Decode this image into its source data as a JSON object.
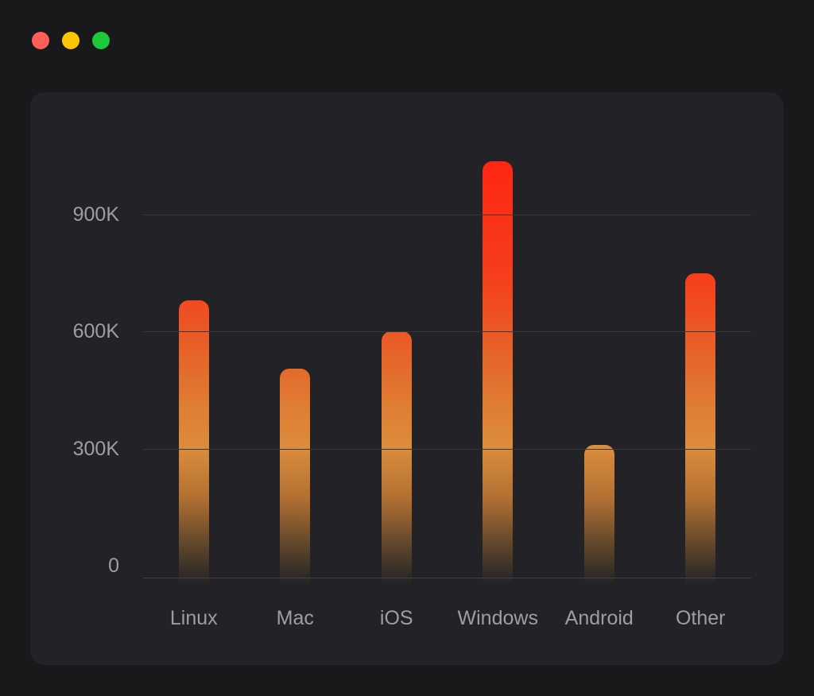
{
  "window": {
    "controls": [
      {
        "name": "close",
        "color": "#ff5f57"
      },
      {
        "name": "minimize",
        "color": "#fdc605"
      },
      {
        "name": "zoom",
        "color": "#1dc83b"
      }
    ]
  },
  "chart_data": {
    "type": "bar",
    "title": "",
    "xlabel": "",
    "ylabel": "",
    "categories": [
      "Linux",
      "Mac",
      "iOS",
      "Windows",
      "Android",
      "Other"
    ],
    "values": [
      680000,
      505000,
      600000,
      1035000,
      310000,
      750000
    ],
    "ylim": [
      0,
      1040000
    ],
    "yticks": [
      {
        "value": 0,
        "label": "0"
      },
      {
        "value": 300000,
        "label": "300K"
      },
      {
        "value": 600000,
        "label": "600K"
      },
      {
        "value": 900000,
        "label": "900K"
      }
    ],
    "grid": true,
    "legend": false,
    "style": {
      "background": "#232327",
      "page_background": "#19191b",
      "label_color": "#9b9fa4",
      "gridline_color": "#37373b",
      "gradient_stops": [
        {
          "at": "0%",
          "color": "#ff2613"
        },
        {
          "at": "26%",
          "color": "#f63c1c"
        },
        {
          "at": "36%",
          "color": "#ee4f22"
        },
        {
          "at": "48%",
          "color": "#e4682b"
        },
        {
          "at": "58%",
          "color": "#df7d33"
        },
        {
          "at": "68%",
          "color": "#db8c3c"
        },
        {
          "at": "80%",
          "color": "#b06f33"
        },
        {
          "at": "91%",
          "color": "#5e452b"
        },
        {
          "at": "100%",
          "color": "rgba(40,33,27,0)"
        }
      ]
    }
  }
}
